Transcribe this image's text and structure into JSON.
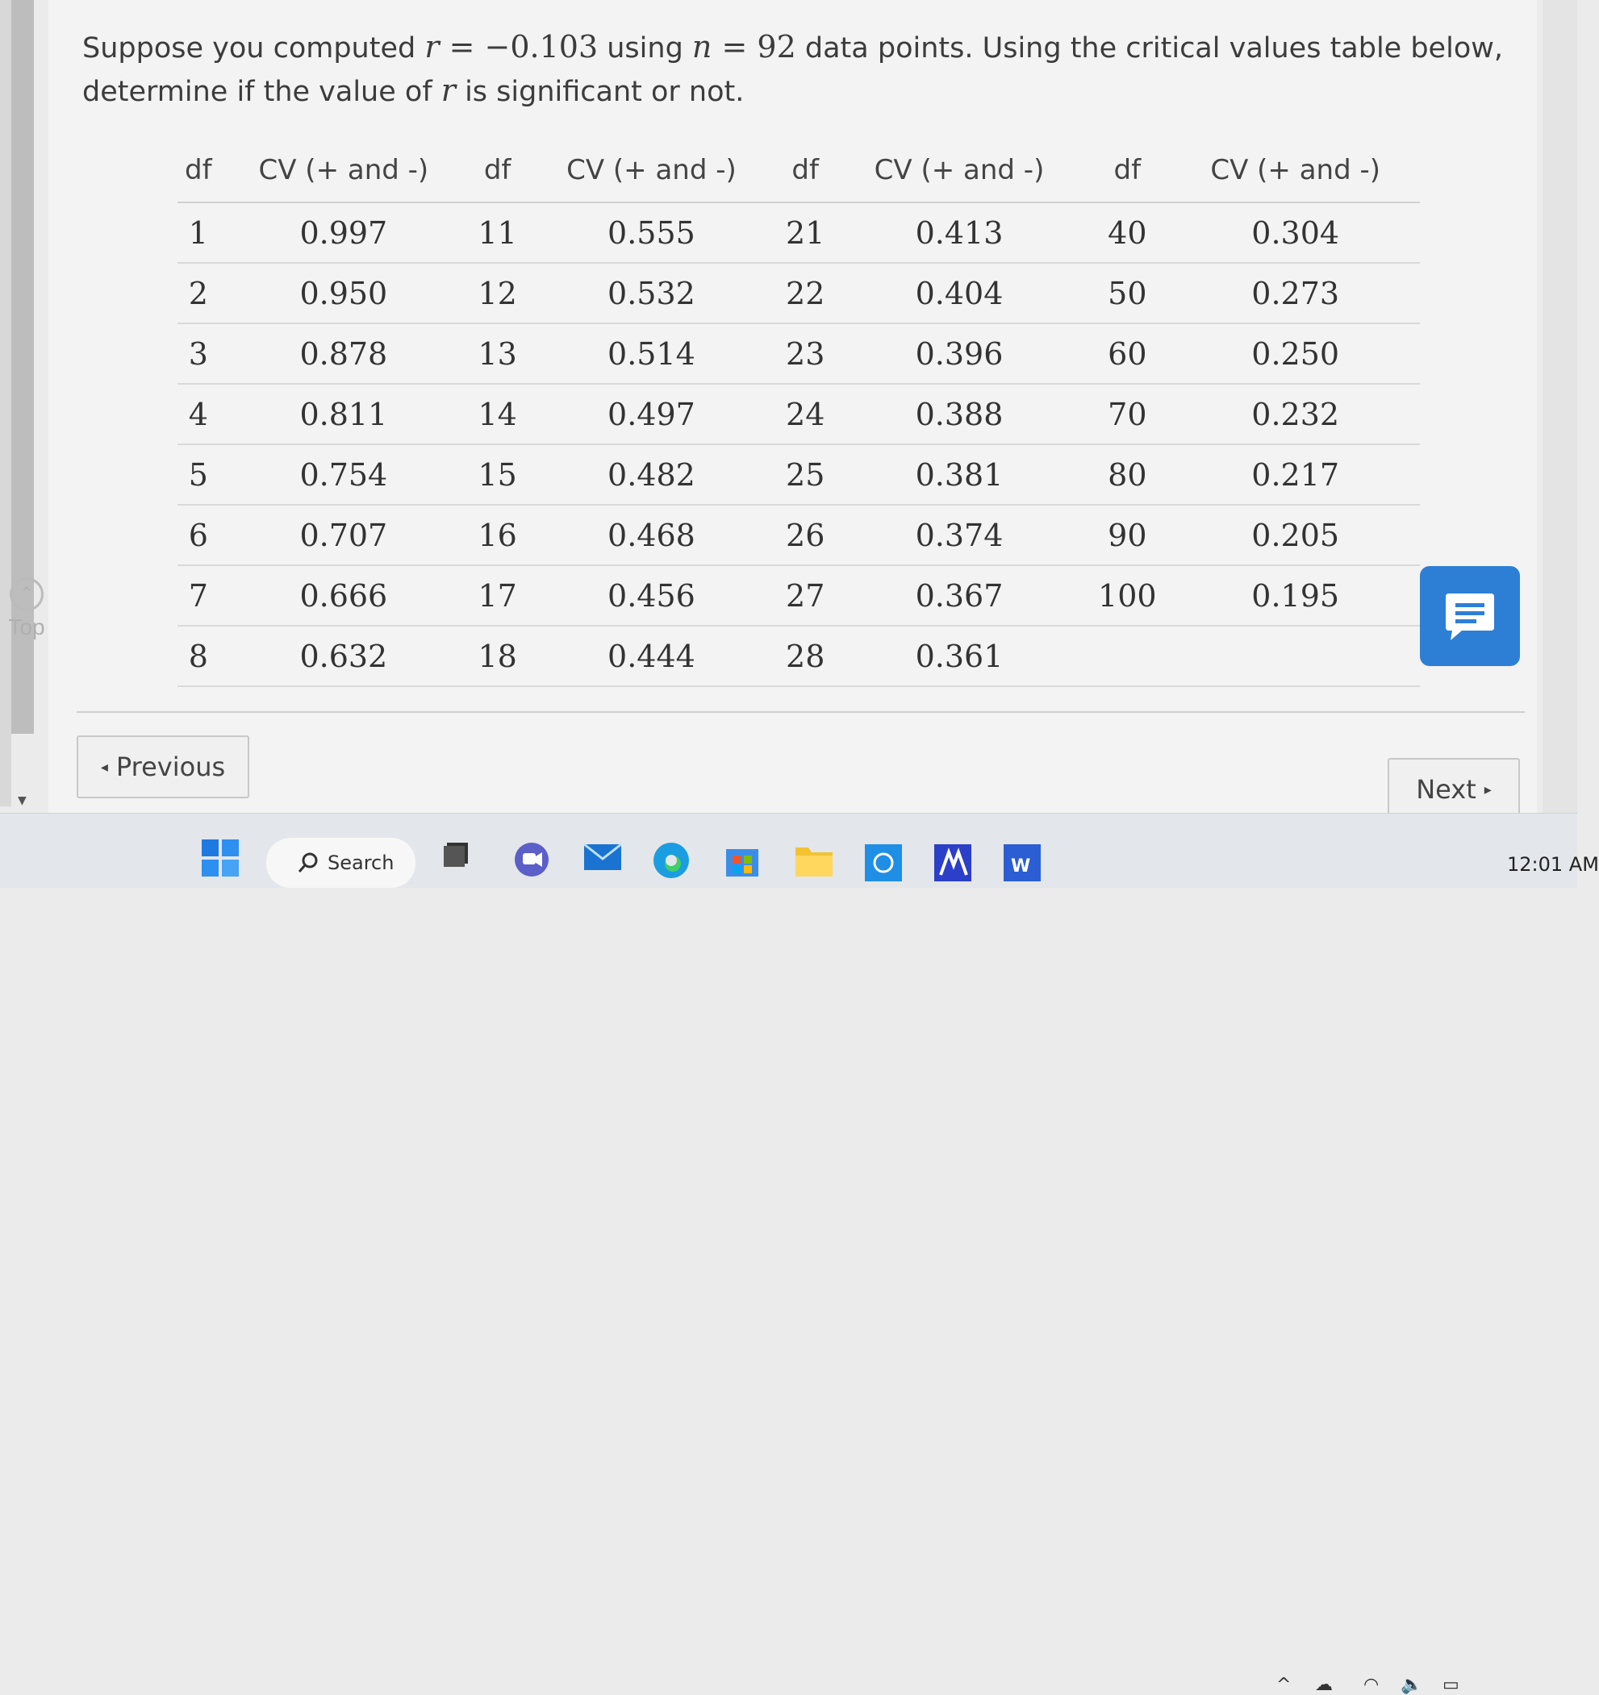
{
  "question": {
    "text_1": "Suppose you computed ",
    "var_r": "r",
    "eq_1": " = −0.103",
    "text_2": " using ",
    "var_n": "n",
    "eq_2": " = 92",
    "text_3": " data points. Using the critical values table below, determine if the value of ",
    "var_r2": "r",
    "text_4": " is significant or not."
  },
  "table": {
    "headers": [
      "df",
      "CV (+ and -)",
      "df",
      "CV (+ and -)",
      "df",
      "CV (+ and -)",
      "df",
      "CV (+ and -)"
    ],
    "rows": [
      [
        "1",
        "0.997",
        "11",
        "0.555",
        "21",
        "0.413",
        "40",
        "0.304"
      ],
      [
        "2",
        "0.950",
        "12",
        "0.532",
        "22",
        "0.404",
        "50",
        "0.273"
      ],
      [
        "3",
        "0.878",
        "13",
        "0.514",
        "23",
        "0.396",
        "60",
        "0.250"
      ],
      [
        "4",
        "0.811",
        "14",
        "0.497",
        "24",
        "0.388",
        "70",
        "0.232"
      ],
      [
        "5",
        "0.754",
        "15",
        "0.482",
        "25",
        "0.381",
        "80",
        "0.217"
      ],
      [
        "6",
        "0.707",
        "16",
        "0.468",
        "26",
        "0.374",
        "90",
        "0.205"
      ],
      [
        "7",
        "0.666",
        "17",
        "0.456",
        "27",
        "0.367",
        "100",
        "0.195"
      ],
      [
        "8",
        "0.632",
        "18",
        "0.444",
        "28",
        "0.361",
        "",
        ""
      ]
    ]
  },
  "nav": {
    "previous_label": "Previous",
    "next_label": "Next",
    "top_label": "Top"
  },
  "taskbar": {
    "search_label": "Search",
    "clock": "12:01 AM"
  },
  "colors": {
    "chat_button": "#2d7fd6"
  }
}
